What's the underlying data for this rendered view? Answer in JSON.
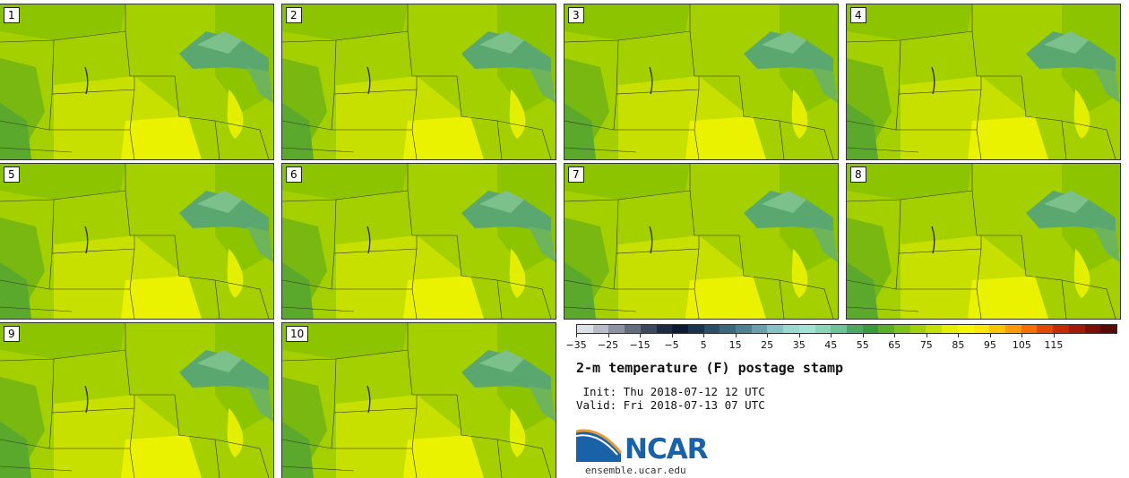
{
  "panels": [
    {
      "label": "1"
    },
    {
      "label": "2"
    },
    {
      "label": "3"
    },
    {
      "label": "4"
    },
    {
      "label": "5"
    },
    {
      "label": "6"
    },
    {
      "label": "7"
    },
    {
      "label": "8"
    },
    {
      "label": "9"
    },
    {
      "label": "10"
    }
  ],
  "colorbar": {
    "tick_labels": [
      "−35",
      "−25",
      "−15",
      "−5",
      "5",
      "15",
      "25",
      "35",
      "45",
      "55",
      "65",
      "75",
      "85",
      "95",
      "105",
      "115"
    ],
    "colors": [
      "#dde0e6",
      "#b7bcc6",
      "#8c93a2",
      "#646d80",
      "#3c4860",
      "#1c2a44",
      "#0c1a33",
      "#1b3550",
      "#2a4f68",
      "#3b687e",
      "#4e8094",
      "#6aa0ac",
      "#86c2c4",
      "#9ad8d2",
      "#a2e2d6",
      "#8cd6b8",
      "#6ec496",
      "#4ea860",
      "#3c9a3c",
      "#5aae28",
      "#7ec31a",
      "#a2d10c",
      "#c4df00",
      "#e4ef00",
      "#f8f500",
      "#ffe600",
      "#ffc400",
      "#ff9a00",
      "#f66e00",
      "#e24800",
      "#c42c00",
      "#a01a06",
      "#7a1008",
      "#5a0a06"
    ]
  },
  "title": "2-m temperature (F) postage stamp",
  "init": " Init: Thu 2018-07-12 12 UTC",
  "valid": "Valid: Fri 2018-07-13 07 UTC",
  "logo": {
    "text": "NCAR",
    "url": "ensemble.ucar.edu"
  }
}
